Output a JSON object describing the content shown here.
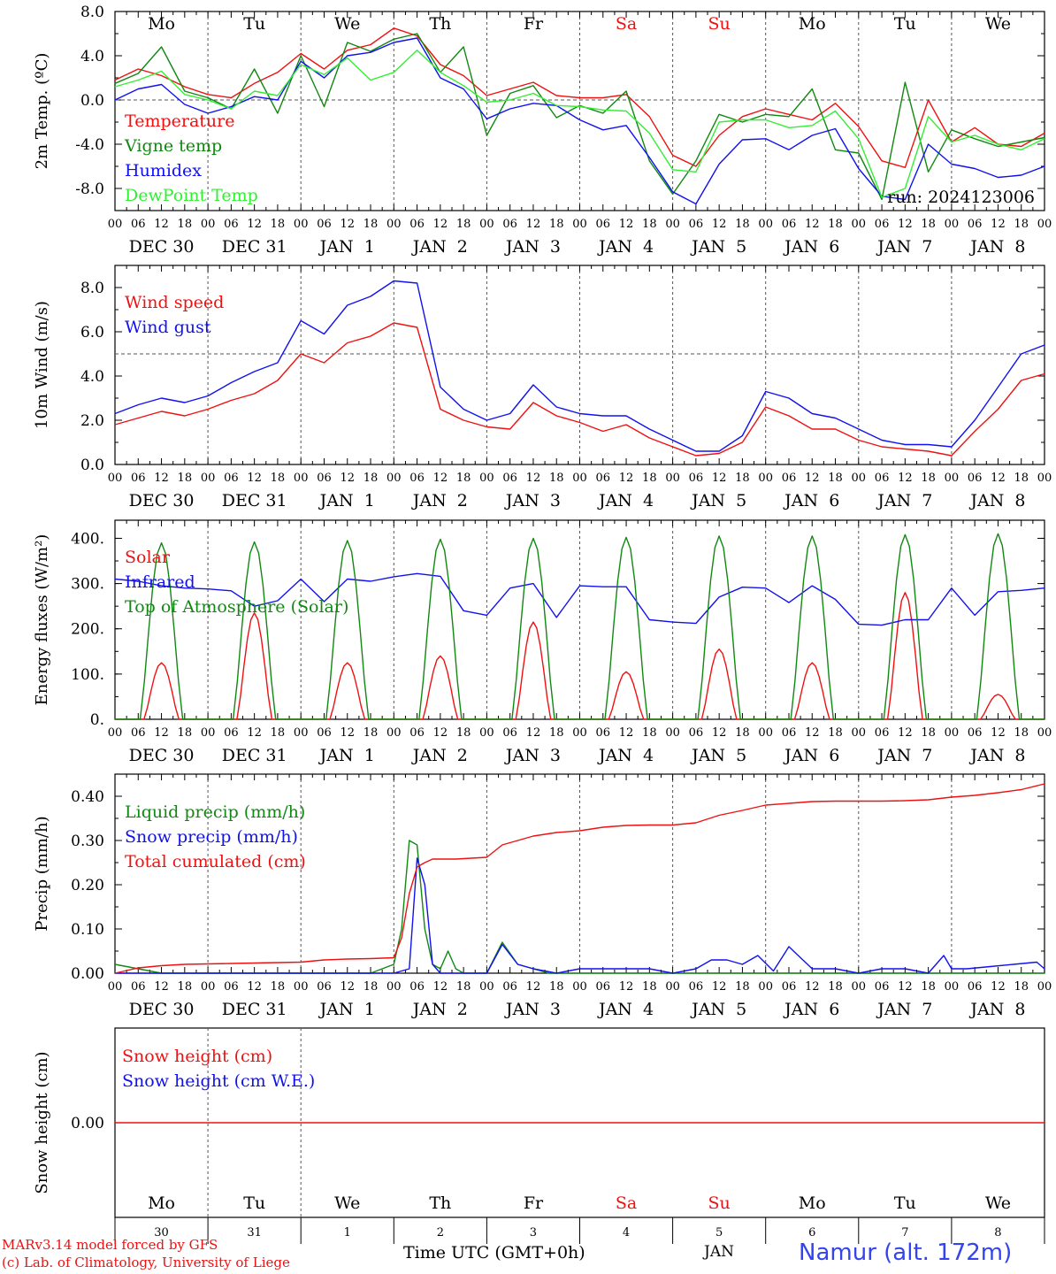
{
  "colors": {
    "red": "#ee1111",
    "green": "#118811",
    "blue": "#1111ee",
    "lightgreen": "#33ee33",
    "axis": "#000000",
    "grid": "#555555"
  },
  "day_names": [
    "Mo",
    "Tu",
    "We",
    "Th",
    "Fr",
    "Sa",
    "Su",
    "Mo",
    "Tu",
    "We"
  ],
  "weekend_days": [
    "Sa",
    "Su"
  ],
  "hour_ticks": [
    "00",
    "06",
    "12",
    "18"
  ],
  "final_hour_tick": "00",
  "date_labels": [
    "DEC 30",
    "DEC 31",
    "JAN  1",
    "JAN  2",
    "JAN  3",
    "JAN  4",
    "JAN  5",
    "JAN  6",
    "JAN  7",
    "JAN  8"
  ],
  "bottom_day_numbers": [
    "30",
    "31",
    "1",
    "2",
    "3",
    "4",
    "5",
    "6",
    "7",
    "8"
  ],
  "footer": {
    "credit_line1": "MARv3.14 model forced by GFS",
    "credit_line2": "(c) Lab. of Climatology, University of Liege",
    "time_axis_label": "Time UTC (GMT+0h)",
    "month_label": "JAN",
    "station": "Namur (alt. 172m)"
  },
  "chart_data": [
    {
      "type": "line",
      "ylabel": "2m Temp. (ºC)",
      "ylim": [
        -10,
        8
      ],
      "yticks": [
        8,
        4,
        0,
        -4,
        -8
      ],
      "ytick_labels": [
        "8.0",
        "4.0",
        "0.0",
        "-4.0",
        "-8.0"
      ],
      "reference_line": 0,
      "run_label": "run: 2024123006",
      "x_unit": "hours since DEC 30 00 UTC",
      "series": [
        {
          "name": "Temperature",
          "color": "red",
          "x": [
            0,
            6,
            12,
            18,
            24,
            30,
            36,
            42,
            48,
            54,
            60,
            66,
            72,
            78,
            84,
            90,
            96,
            102,
            108,
            114,
            120,
            126,
            132,
            138,
            144,
            150,
            156,
            162,
            168,
            174,
            180,
            186,
            192,
            198,
            204,
            210,
            216,
            222,
            228,
            234,
            240
          ],
          "y": [
            1.8,
            2.8,
            2.2,
            1.2,
            0.5,
            0.2,
            1.5,
            2.5,
            4.2,
            2.8,
            4.5,
            5.0,
            6.5,
            5.8,
            3.2,
            2.2,
            0.4,
            1.0,
            1.6,
            0.4,
            0.2,
            0.2,
            0.5,
            -1.5,
            -5.0,
            -6.0,
            -3.2,
            -1.5,
            -0.8,
            -1.3,
            -1.8,
            -0.3,
            -2.4,
            -5.5,
            -6.1,
            0.0,
            -3.8,
            -2.5,
            -4.0,
            -4.2,
            -3.0
          ]
        },
        {
          "name": "Vigne temp",
          "color": "green",
          "x": [
            0,
            6,
            12,
            18,
            24,
            30,
            36,
            42,
            48,
            54,
            60,
            66,
            72,
            78,
            84,
            90,
            96,
            102,
            108,
            114,
            120,
            126,
            132,
            138,
            144,
            150,
            156,
            162,
            168,
            174,
            180,
            186,
            192,
            198,
            204,
            210,
            216,
            222,
            228,
            234,
            240
          ],
          "y": [
            1.5,
            2.4,
            4.8,
            0.8,
            0.2,
            -0.8,
            2.8,
            -1.2,
            4.0,
            -0.6,
            5.2,
            4.4,
            5.5,
            6.0,
            2.5,
            4.8,
            -3.2,
            0.6,
            1.3,
            -1.6,
            -0.5,
            -1.2,
            0.8,
            -5.5,
            -8.5,
            -5.5,
            -1.3,
            -2.0,
            -1.3,
            -1.5,
            1.0,
            -4.5,
            -4.8,
            -9.0,
            1.6,
            -6.5,
            -2.7,
            -3.5,
            -4.2,
            -3.8,
            -3.4
          ]
        },
        {
          "name": "Humidex",
          "color": "blue",
          "x": [
            0,
            6,
            12,
            18,
            24,
            30,
            36,
            42,
            48,
            54,
            60,
            66,
            72,
            78,
            84,
            90,
            96,
            102,
            108,
            114,
            120,
            126,
            132,
            138,
            144,
            150,
            156,
            162,
            168,
            174,
            180,
            186,
            192,
            198,
            204,
            210,
            216,
            222,
            228,
            234,
            240
          ],
          "y": [
            0.0,
            1.0,
            1.4,
            -0.4,
            -1.2,
            -0.6,
            0.3,
            0.0,
            3.5,
            2.0,
            4.0,
            4.3,
            5.2,
            5.6,
            2.0,
            1.0,
            -1.7,
            -0.8,
            -0.3,
            -0.5,
            -1.8,
            -2.7,
            -2.3,
            -5.2,
            -8.3,
            -9.4,
            -5.8,
            -3.6,
            -3.5,
            -4.5,
            -3.2,
            -2.6,
            -6.2,
            -8.7,
            -9.0,
            -4.0,
            -5.8,
            -6.2,
            -7.0,
            -6.8,
            -6.0
          ]
        },
        {
          "name": "DewPoint Temp",
          "color": "lightgreen",
          "x": [
            0,
            6,
            12,
            18,
            24,
            30,
            36,
            42,
            48,
            54,
            60,
            66,
            72,
            78,
            84,
            90,
            96,
            102,
            108,
            114,
            120,
            126,
            132,
            138,
            144,
            150,
            156,
            162,
            168,
            174,
            180,
            186,
            192,
            198,
            204,
            210,
            216,
            222,
            228,
            234,
            240
          ],
          "y": [
            1.2,
            1.8,
            2.6,
            0.5,
            0.0,
            -0.8,
            0.8,
            0.4,
            3.2,
            2.3,
            3.8,
            1.8,
            2.5,
            4.5,
            2.5,
            1.3,
            -0.2,
            0.0,
            0.6,
            -0.5,
            -0.6,
            -0.9,
            -1.0,
            -3.0,
            -6.3,
            -6.5,
            -2.0,
            -1.8,
            -1.8,
            -2.5,
            -2.3,
            -1.0,
            -3.5,
            -8.8,
            -8.0,
            -1.5,
            -3.8,
            -3.2,
            -4.0,
            -4.5,
            -3.5
          ]
        }
      ]
    },
    {
      "type": "line",
      "ylabel": "10m Wind (m/s)",
      "ylim": [
        0,
        9
      ],
      "yticks": [
        0,
        2,
        4,
        6,
        8
      ],
      "ytick_labels": [
        "0.0",
        "2.0",
        "4.0",
        "6.0",
        "8.0"
      ],
      "reference_line": 5,
      "x_unit": "hours since DEC 30 00 UTC",
      "series": [
        {
          "name": "Wind speed",
          "color": "red",
          "x": [
            0,
            6,
            12,
            18,
            24,
            30,
            36,
            42,
            48,
            54,
            60,
            66,
            72,
            78,
            84,
            90,
            96,
            102,
            108,
            114,
            120,
            126,
            132,
            138,
            144,
            150,
            156,
            162,
            168,
            174,
            180,
            186,
            192,
            198,
            204,
            210,
            216,
            222,
            228,
            234,
            240
          ],
          "y": [
            1.8,
            2.1,
            2.4,
            2.2,
            2.5,
            2.9,
            3.2,
            3.8,
            5.0,
            4.6,
            5.5,
            5.8,
            6.4,
            6.2,
            2.5,
            2.0,
            1.7,
            1.6,
            2.8,
            2.2,
            1.9,
            1.5,
            1.8,
            1.2,
            0.8,
            0.4,
            0.5,
            1.0,
            2.6,
            2.2,
            1.6,
            1.6,
            1.1,
            0.8,
            0.7,
            0.6,
            0.4,
            1.5,
            2.5,
            3.8,
            4.1
          ]
        },
        {
          "name": "Wind gust",
          "color": "blue",
          "x": [
            0,
            6,
            12,
            18,
            24,
            30,
            36,
            42,
            48,
            54,
            60,
            66,
            72,
            78,
            84,
            90,
            96,
            102,
            108,
            114,
            120,
            126,
            132,
            138,
            144,
            150,
            156,
            162,
            168,
            174,
            180,
            186,
            192,
            198,
            204,
            210,
            216,
            222,
            228,
            234,
            240
          ],
          "y": [
            2.3,
            2.7,
            3.0,
            2.8,
            3.1,
            3.7,
            4.2,
            4.6,
            6.5,
            5.9,
            7.2,
            7.6,
            8.3,
            8.2,
            3.5,
            2.5,
            2.0,
            2.3,
            3.6,
            2.6,
            2.3,
            2.2,
            2.2,
            1.6,
            1.1,
            0.6,
            0.6,
            1.3,
            3.3,
            3.0,
            2.3,
            2.1,
            1.6,
            1.1,
            0.9,
            0.9,
            0.8,
            2.0,
            3.5,
            5.0,
            5.4
          ]
        }
      ]
    },
    {
      "type": "line",
      "ylabel": "Energy fluxes (W/m²)",
      "ylim": [
        0,
        440
      ],
      "yticks": [
        0,
        100,
        200,
        300,
        400
      ],
      "ytick_labels": [
        "0.",
        "100.",
        "200.",
        "300.",
        "400."
      ],
      "x_unit": "hours since DEC 30 00 UTC",
      "daily_peak_hour": 12,
      "series": [
        {
          "name": "Solar",
          "color": "red",
          "daily_peaks": [
            125,
            235,
            125,
            140,
            215,
            105,
            155,
            125,
            280,
            55
          ]
        },
        {
          "name": "Infrared",
          "color": "blue",
          "x": [
            0,
            6,
            12,
            18,
            24,
            30,
            36,
            42,
            48,
            54,
            60,
            66,
            72,
            78,
            84,
            90,
            96,
            102,
            108,
            114,
            120,
            126,
            132,
            138,
            144,
            150,
            156,
            162,
            168,
            174,
            180,
            186,
            192,
            198,
            204,
            210,
            216,
            222,
            228,
            234,
            240
          ],
          "y": [
            310,
            305,
            295,
            290,
            288,
            284,
            250,
            262,
            310,
            260,
            310,
            305,
            315,
            322,
            316,
            240,
            230,
            290,
            300,
            225,
            295,
            293,
            293,
            220,
            215,
            212,
            270,
            292,
            290,
            258,
            295,
            265,
            210,
            208,
            220,
            220,
            290,
            230,
            282,
            285,
            290
          ]
        },
        {
          "name": "Top of Atmosphere (Solar)",
          "color": "green",
          "daily_peaks": [
            390,
            392,
            395,
            398,
            400,
            402,
            405,
            405,
            408,
            410
          ]
        }
      ]
    },
    {
      "type": "line",
      "ylabel": "Precip (mm/h)",
      "ylim": [
        0,
        0.45
      ],
      "yticks": [
        0,
        0.1,
        0.2,
        0.3,
        0.4
      ],
      "ytick_labels": [
        "0.00",
        "0.10",
        "0.20",
        "0.30",
        "0.40"
      ],
      "x_unit": "hours since DEC 30 00 UTC",
      "series": [
        {
          "name": "Liquid precip (mm/h)",
          "color": "green",
          "x": [
            0,
            6,
            12,
            18,
            24,
            30,
            36,
            42,
            48,
            54,
            60,
            66,
            69,
            72,
            74,
            76,
            78,
            80,
            82,
            84,
            86,
            88,
            90,
            92,
            94,
            96,
            100,
            104,
            108,
            112,
            116,
            120,
            126,
            132,
            138,
            144,
            150,
            156,
            162,
            168,
            174,
            180,
            186,
            192,
            198,
            204,
            210,
            216,
            222,
            228,
            234,
            240
          ],
          "y": [
            0.02,
            0.01,
            0,
            0,
            0,
            0,
            0,
            0,
            0,
            0,
            0,
            0,
            0.01,
            0.02,
            0.1,
            0.3,
            0.29,
            0.1,
            0.02,
            0.01,
            0.05,
            0.01,
            0,
            0,
            0,
            0,
            0.07,
            0.02,
            0.01,
            0,
            0,
            0,
            0,
            0,
            0,
            0,
            0,
            0,
            0,
            0,
            0,
            0,
            0,
            0,
            0,
            0,
            0,
            0,
            0,
            0,
            0,
            0
          ]
        },
        {
          "name": "Snow precip (mm/h)",
          "color": "blue",
          "x": [
            0,
            6,
            12,
            18,
            24,
            30,
            36,
            42,
            48,
            54,
            60,
            66,
            72,
            76,
            78,
            80,
            82,
            84,
            88,
            92,
            96,
            100,
            104,
            108,
            114,
            120,
            126,
            132,
            138,
            144,
            150,
            154,
            158,
            162,
            166,
            170,
            174,
            180,
            186,
            192,
            198,
            204,
            210,
            214,
            216,
            220,
            226,
            232,
            238,
            240
          ],
          "y": [
            0,
            0,
            0,
            0,
            0,
            0,
            0,
            0,
            0,
            0,
            0,
            0,
            0,
            0.01,
            0.26,
            0.2,
            0.02,
            0,
            0,
            0,
            0,
            0.065,
            0.02,
            0.01,
            0,
            0.01,
            0.01,
            0.01,
            0.01,
            0,
            0.01,
            0.03,
            0.03,
            0.02,
            0.04,
            0.005,
            0.06,
            0.01,
            0.01,
            0,
            0.01,
            0.01,
            0,
            0.04,
            0.01,
            0.01,
            0.015,
            0.02,
            0.025,
            0.01
          ]
        },
        {
          "name": "Total cumulated (cm)",
          "color": "red",
          "x": [
            0,
            6,
            12,
            18,
            24,
            30,
            36,
            42,
            48,
            54,
            60,
            66,
            72,
            74,
            76,
            78,
            80,
            82,
            84,
            88,
            92,
            96,
            100,
            104,
            108,
            114,
            120,
            126,
            132,
            138,
            144,
            150,
            156,
            162,
            168,
            174,
            180,
            186,
            192,
            198,
            204,
            210,
            216,
            222,
            228,
            234,
            240
          ],
          "y": [
            0.0,
            0.012,
            0.017,
            0.02,
            0.021,
            0.022,
            0.023,
            0.024,
            0.025,
            0.03,
            0.032,
            0.033,
            0.035,
            0.08,
            0.18,
            0.24,
            0.25,
            0.258,
            0.258,
            0.258,
            0.26,
            0.262,
            0.29,
            0.3,
            0.31,
            0.318,
            0.322,
            0.33,
            0.334,
            0.335,
            0.335,
            0.34,
            0.357,
            0.368,
            0.38,
            0.384,
            0.388,
            0.389,
            0.389,
            0.389,
            0.39,
            0.392,
            0.398,
            0.402,
            0.408,
            0.415,
            0.428
          ]
        }
      ]
    },
    {
      "type": "line",
      "ylabel": "Snow height (cm)",
      "ylim": [
        -1,
        1
      ],
      "yticks": [
        0
      ],
      "ytick_labels": [
        "0.00"
      ],
      "x_unit": "hours since DEC 30 00 UTC",
      "series": [
        {
          "name": "Snow height (cm)",
          "color": "red",
          "x": [
            0,
            240
          ],
          "y": [
            0,
            0
          ]
        },
        {
          "name": "Snow height (cm W.E.)",
          "color": "blue",
          "x": [],
          "y": []
        }
      ]
    }
  ]
}
